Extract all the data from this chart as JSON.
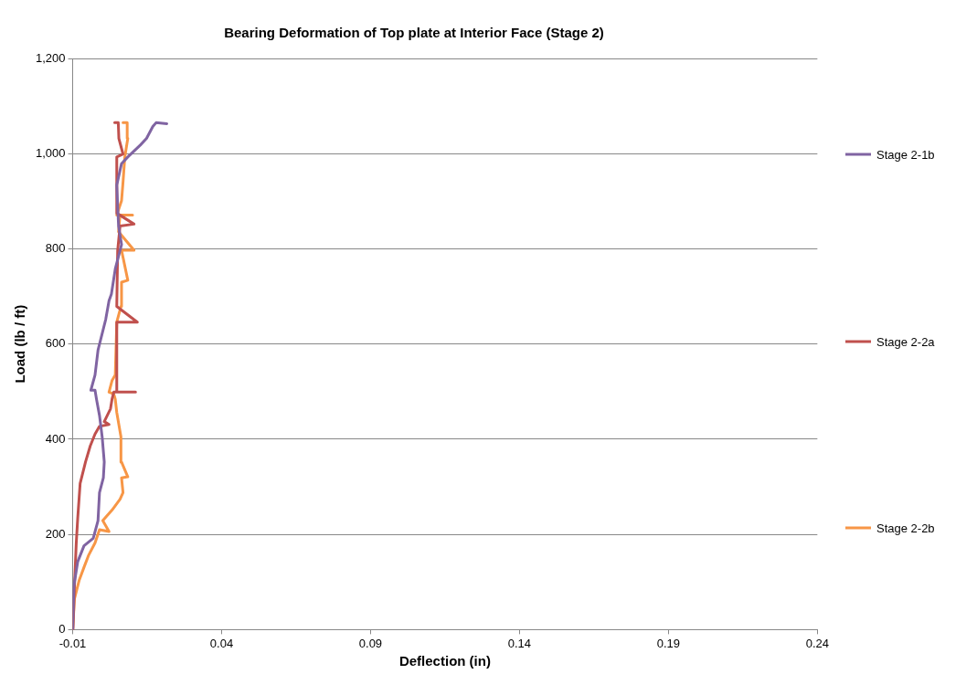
{
  "chart_data": {
    "type": "line",
    "title": "Bearing Deformation of Top plate at Interior Face (Stage 2)",
    "xlabel": "Deflection (in)",
    "ylabel": "Load (lb / ft)",
    "xlim": [
      -0.01,
      0.24
    ],
    "xticks": [
      -0.01,
      0.04,
      0.09,
      0.14,
      0.19,
      0.24
    ],
    "ylim": [
      0,
      1200
    ],
    "yticks": [
      {
        "value": 0,
        "label": "0"
      },
      {
        "value": 200,
        "label": "200"
      },
      {
        "value": 400,
        "label": "400"
      },
      {
        "value": 600,
        "label": "600"
      },
      {
        "value": 800,
        "label": "800"
      },
      {
        "value": 1000,
        "label": "1,000"
      },
      {
        "value": 1200,
        "label": "1,200"
      }
    ],
    "grid": "y",
    "legend": "right",
    "marker": "none",
    "line_style": "solid",
    "series": [
      {
        "name": "Stage 2-1b",
        "color": "#8064a2",
        "x": [
          -0.01,
          -0.0096,
          -0.0083,
          -0.0062,
          -0.0031,
          -0.0015,
          -0.001,
          0.0003,
          0.0006,
          -0.0001,
          -0.001,
          -0.002,
          -0.0025,
          -0.0039,
          -0.0025,
          -0.0015,
          0.0001,
          0.0011,
          0.0022,
          0.003,
          0.0043,
          0.0064,
          0.0054,
          0.0048,
          0.0064,
          0.0085,
          0.0127,
          0.0148,
          0.0169,
          0.018,
          0.0216
        ],
        "values": [
          0,
          92,
          143,
          176,
          192,
          229,
          288,
          319,
          352,
          405,
          450,
          484,
          503,
          503,
          535,
          587,
          627,
          652,
          691,
          705,
          758,
          809,
          848,
          934,
          979,
          993,
          1018,
          1032,
          1057,
          1065,
          1063
        ]
      },
      {
        "name": "Stage 2-2a",
        "color": "#c0504d",
        "x": [
          -0.0099,
          -0.0094,
          -0.0088,
          -0.0083,
          -0.0075,
          -0.0057,
          -0.0041,
          -0.0025,
          -0.001,
          0.0022,
          0.0006,
          0.0027,
          0.0032,
          0.0038,
          0.0111,
          0.0048,
          0.0048,
          0.0117,
          0.0048,
          0.0051,
          0.0059,
          0.0106,
          0.0048,
          0.0048,
          0.0069,
          0.0055,
          0.0053,
          0.0041
        ],
        "values": [
          0,
          92,
          182,
          235,
          307,
          352,
          386,
          411,
          427,
          431,
          437,
          464,
          484,
          499,
          499,
          499,
          646,
          646,
          679,
          797,
          848,
          852,
          875,
          993,
          999,
          1032,
          1065,
          1065
        ]
      },
      {
        "name": "Stage 2-2b",
        "color": "#f79646",
        "x": [
          -0.01,
          -0.0094,
          -0.0078,
          -0.0062,
          -0.0046,
          -0.0025,
          -0.001,
          0.0022,
          0.0001,
          0.0032,
          0.0059,
          0.0069,
          0.0064,
          0.0085,
          0.0064,
          0.0062,
          0.0048,
          0.0043,
          0.0038,
          0.0022,
          0.0032,
          0.0043,
          0.0048,
          0.0062,
          0.0064,
          0.0085,
          0.0064,
          0.0106,
          0.0054,
          0.0059,
          0.0101,
          0.0048,
          0.0064,
          0.0069,
          0.0075,
          0.0085,
          0.0083,
          0.0069
        ],
        "values": [
          0,
          65,
          104,
          131,
          157,
          182,
          210,
          206,
          229,
          251,
          274,
          288,
          319,
          321,
          352,
          405,
          456,
          484,
          495,
          499,
          523,
          535,
          646,
          679,
          730,
          734,
          797,
          797,
          836,
          871,
          871,
          871,
          901,
          940,
          993,
          1032,
          1065,
          1065
        ]
      }
    ]
  }
}
